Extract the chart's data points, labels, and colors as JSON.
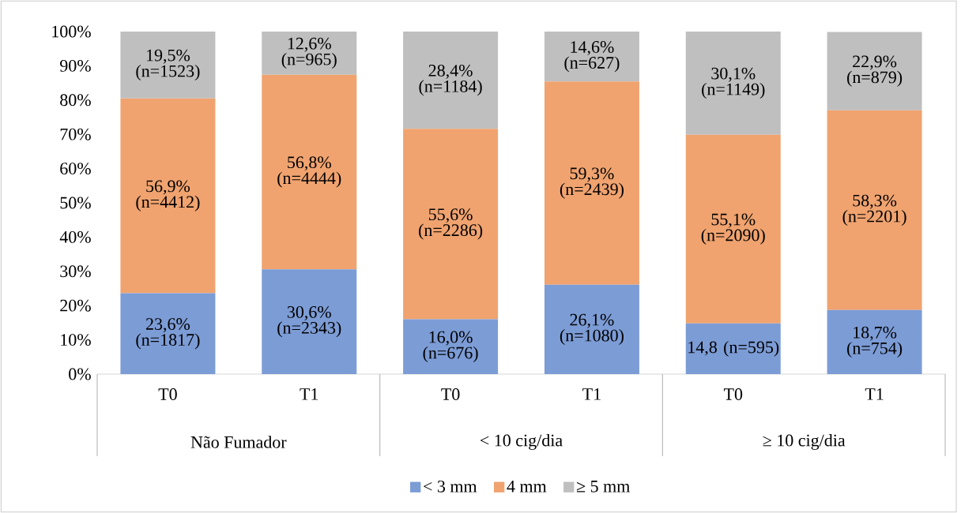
{
  "chart_data": {
    "type": "bar",
    "stacked": true,
    "legend": "bottom",
    "categories": [
      "T0",
      "T1",
      "T0",
      "T1",
      "T0",
      "T1"
    ],
    "annotations": [
      "Não Fumador",
      "< 10 cig/dia",
      "≥ 10 cig/dia"
    ],
    "ylim": [
      0,
      100
    ],
    "yticks": [
      {
        "value": 0,
        "label": "0%"
      },
      {
        "value": 10,
        "label": "10%"
      },
      {
        "value": 20,
        "label": "20%"
      },
      {
        "value": 30,
        "label": "30%"
      },
      {
        "value": 40,
        "label": "40%"
      },
      {
        "value": 50,
        "label": "50%"
      },
      {
        "value": 60,
        "label": "60%"
      },
      {
        "value": 70,
        "label": "70%"
      },
      {
        "value": 80,
        "label": "80%"
      },
      {
        "value": 90,
        "label": "90%"
      },
      {
        "value": 100,
        "label": "100%"
      }
    ],
    "series": [
      {
        "name": "< 3 mm",
        "color": "#7c9cd6",
        "values": [
          23.6,
          30.6,
          16.0,
          26.1,
          14.8,
          18.7
        ],
        "value_labels": [
          "23,6% (n=1817)",
          "30,6% (n=2343)",
          "16,0% (n=676)",
          "26,1% (n=1080)",
          "14,8 (n=595)",
          "18,7% (n=754)"
        ]
      },
      {
        "name": "4 mm",
        "color": "#f0a36f",
        "values": [
          56.9,
          56.8,
          55.6,
          59.3,
          55.1,
          58.3
        ],
        "value_labels": [
          "56,9% (n=4412)",
          "56,8% (n=4444)",
          "55,6% (n=2286)",
          "59,3% (n=2439)",
          "55,1% (n=2090)",
          "58,3% (n=2201)"
        ]
      },
      {
        "name": "≥ 5 mm",
        "color": "#bfbfbf",
        "values": [
          19.5,
          12.6,
          28.4,
          14.6,
          30.1,
          22.9
        ],
        "value_labels": [
          "19,5% (n=1523)",
          "12,6% (n=965)",
          "28,4% (n=1184)",
          "14,6% (n=627)",
          "30,1% (n=1149)",
          "22,9% (n=879)"
        ]
      }
    ]
  }
}
